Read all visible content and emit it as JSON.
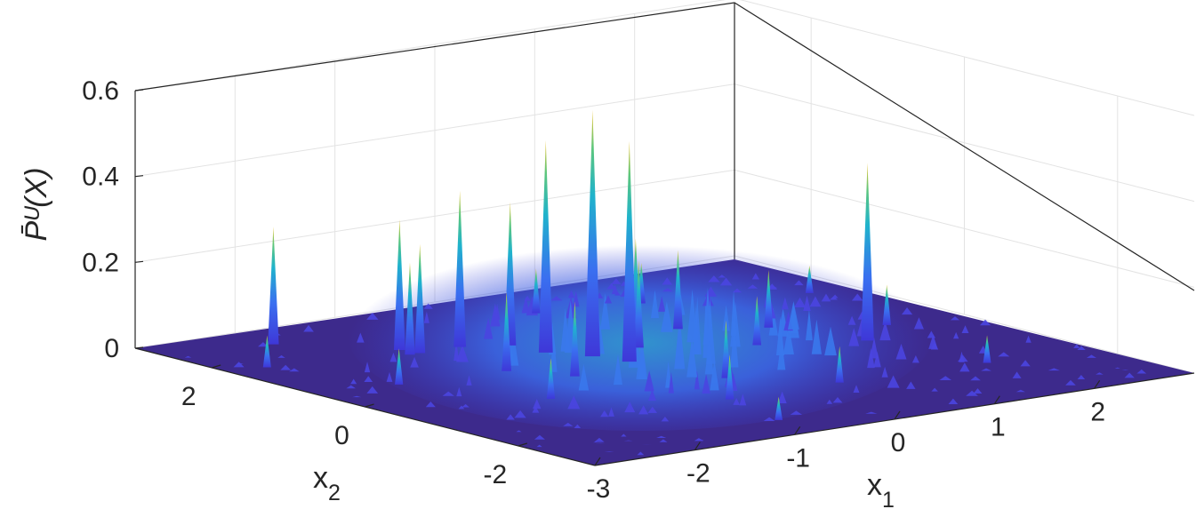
{
  "chart_data": {
    "type": "surface",
    "title": "",
    "xlabel": "x",
    "xlabel_sub": "1",
    "ylabel": "x",
    "ylabel_sub": "2",
    "zlabel": "P̄ᵁ(X)",
    "xlim": [
      -3,
      3
    ],
    "ylim": [
      -3,
      3
    ],
    "zlim": [
      0,
      0.6
    ],
    "x_ticks": [
      "-3",
      "-2",
      "-1",
      "0",
      "1",
      "2"
    ],
    "y_ticks": [
      "-2",
      "0",
      "2"
    ],
    "z_ticks": [
      "0",
      "0.2",
      "0.4",
      "0.6"
    ],
    "grid": true,
    "colormap": "parula",
    "floor_color": "#3d2a8c",
    "body_color": "#3b4ee6",
    "peak_color": "#f2c530",
    "broad_bulk": {
      "center": [
        0.1,
        0.2
      ],
      "spread": 1.1,
      "max_height": 0.1
    },
    "peaks": [
      {
        "x": -0.3,
        "y": 0.55,
        "z": 0.57
      },
      {
        "x": -0.5,
        "y": 0.9,
        "z": 0.49
      },
      {
        "x": -0.2,
        "y": 0.2,
        "z": 0.51
      },
      {
        "x": -0.55,
        "y": 1.3,
        "z": 0.33
      },
      {
        "x": -0.9,
        "y": 1.5,
        "z": 0.36
      },
      {
        "x": -1.3,
        "y": 1.5,
        "z": 0.25
      },
      {
        "x": -1.35,
        "y": 1.7,
        "z": 0.3
      },
      {
        "x": 1.8,
        "y": -0.3,
        "z": 0.41
      },
      {
        "x": -2.0,
        "y": 2.5,
        "z": 0.27
      },
      {
        "x": -1.4,
        "y": 1.5,
        "z": 0.21
      },
      {
        "x": 0.4,
        "y": 0.9,
        "z": 0.23
      },
      {
        "x": 0.9,
        "y": 1.0,
        "z": 0.18
      },
      {
        "x": -0.9,
        "y": 0.0,
        "z": 0.17
      },
      {
        "x": -1.2,
        "y": 0.5,
        "z": 0.18
      },
      {
        "x": 0.0,
        "y": -0.8,
        "z": 0.13
      },
      {
        "x": -0.5,
        "y": -1.5,
        "z": 0.1
      },
      {
        "x": 1.5,
        "y": 0.6,
        "z": 0.13
      },
      {
        "x": 2.3,
        "y": 0.1,
        "z": 0.09
      },
      {
        "x": 2.6,
        "y": 1.5,
        "z": 0.06
      },
      {
        "x": -2.6,
        "y": 1.8,
        "z": 0.07
      },
      {
        "x": 0.6,
        "y": -1.5,
        "z": 0.08
      },
      {
        "x": -0.1,
        "y": 1.4,
        "z": 0.14
      },
      {
        "x": 1.0,
        "y": 0.1,
        "z": 0.11
      },
      {
        "x": -1.6,
        "y": -0.6,
        "z": 0.09
      },
      {
        "x": 0.4,
        "y": 2.2,
        "z": 0.1
      },
      {
        "x": -2.2,
        "y": 0.6,
        "z": 0.08
      },
      {
        "x": 1.3,
        "y": 2.0,
        "z": 0.09
      },
      {
        "x": 2.0,
        "y": -1.6,
        "z": 0.06
      },
      {
        "x": -0.7,
        "y": -2.4,
        "z": 0.05
      },
      {
        "x": 0.2,
        "y": 0.6,
        "z": 0.2
      }
    ]
  }
}
